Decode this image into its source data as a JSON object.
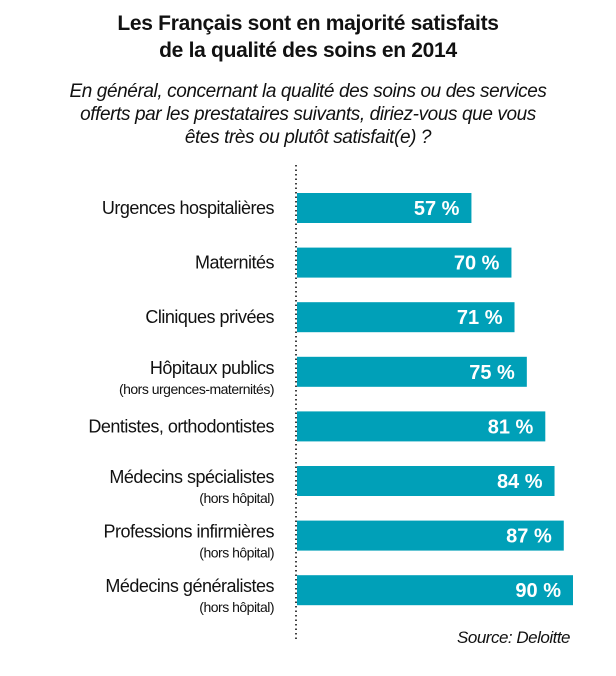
{
  "chart_data": {
    "type": "bar",
    "orientation": "horizontal",
    "title": "Les Français sont en majorité satisfaits de la qualité des soins en 2014",
    "title_lines": [
      "Les Français sont en majorité satisfaits",
      "de la qualité des soins en 2014"
    ],
    "subtitle_lines": [
      "En général, concernant la qualité des soins ou des services",
      "offerts par les prestataires suivants, diriez-vous que vous",
      "êtes très ou plutôt satisfait(e) ?"
    ],
    "categories": [
      {
        "label": "Urgences hospitalières",
        "sublabel": ""
      },
      {
        "label": "Maternités",
        "sublabel": ""
      },
      {
        "label": "Cliniques privées",
        "sublabel": ""
      },
      {
        "label": "Hôpitaux publics",
        "sublabel": "(hors urgences-maternités)"
      },
      {
        "label": "Dentistes, orthodontistes",
        "sublabel": ""
      },
      {
        "label": "Médecins spécialistes",
        "sublabel": "(hors hôpital)"
      },
      {
        "label": "Professions infirmières",
        "sublabel": "(hors hôpital)"
      },
      {
        "label": "Médecins généralistes",
        "sublabel": "(hors hôpital)"
      }
    ],
    "values": [
      57,
      70,
      71,
      75,
      81,
      84,
      87,
      90
    ],
    "value_labels": [
      "57 %",
      "70 %",
      "71 %",
      "75 %",
      "81 %",
      "84 %",
      "87 %",
      "90 %"
    ],
    "unit": "%",
    "xlim": [
      0,
      90
    ],
    "xlabel": "",
    "ylabel": "",
    "grid": false,
    "legend": "none",
    "bar_color": "#00a0b8",
    "axis_style": "dotted",
    "source": "Source: Deloitte"
  }
}
